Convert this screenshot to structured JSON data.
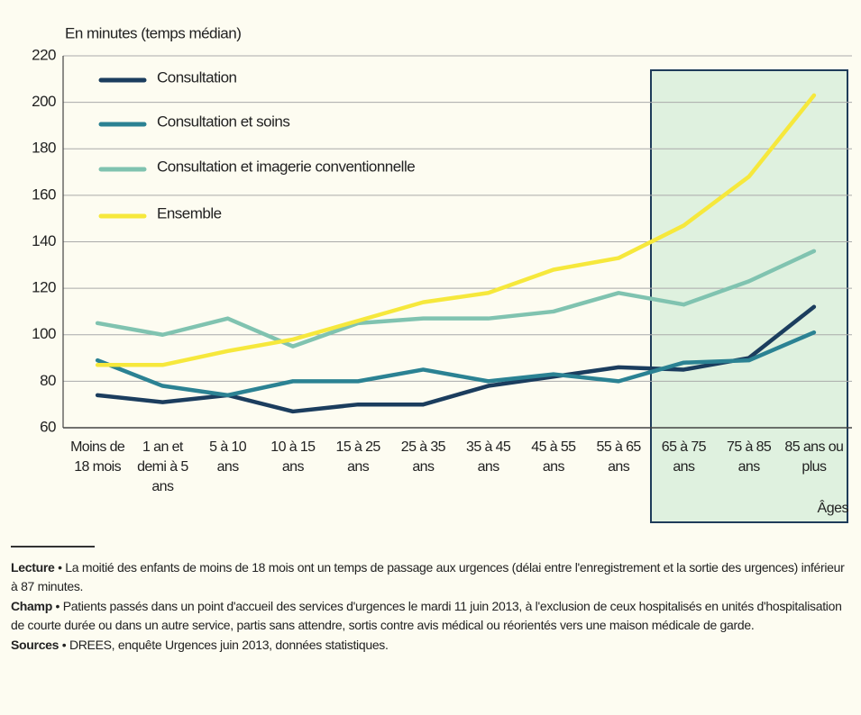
{
  "chart_data": {
    "type": "line",
    "y_axis_label": "En minutes (temps médian)",
    "x_axis_label": "Âges",
    "categories": [
      "Moins de 18 mois",
      "1 an et demi à 5 ans",
      "5 à 10 ans",
      "10 à 15 ans",
      "15 à 25 ans",
      "25 à 35 ans",
      "35 à 45 ans",
      "45 à 55 ans",
      "55 à 65 ans",
      "65 à 75 ans",
      "75 à 85 ans",
      "85 ans ou plus"
    ],
    "series": [
      {
        "name": "Consultation",
        "color": "#1b3d5e",
        "values": [
          74,
          71,
          74,
          67,
          70,
          70,
          78,
          82,
          86,
          85,
          90,
          112
        ]
      },
      {
        "name": "Consultation et soins",
        "color": "#2b8293",
        "values": [
          89,
          78,
          74,
          80,
          80,
          85,
          80,
          83,
          80,
          88,
          89,
          101
        ]
      },
      {
        "name": "Consultation et imagerie conventionnelle",
        "color": "#80c3b0",
        "values": [
          105,
          100,
          107,
          95,
          105,
          107,
          107,
          110,
          118,
          113,
          123,
          136
        ]
      },
      {
        "name": "Ensemble",
        "color": "#f6e83c",
        "values": [
          87,
          87,
          93,
          98,
          106,
          114,
          118,
          128,
          133,
          147,
          168,
          203
        ]
      }
    ],
    "ylim": [
      60,
      220
    ],
    "yticks": [
      60,
      80,
      100,
      120,
      140,
      160,
      180,
      200,
      220
    ],
    "grid": true,
    "legend": "upper left"
  },
  "notes": [
    {
      "label": "Lecture",
      "text": "• La moitié des enfants de moins de 18 mois ont un temps de passage aux urgences (délai entre l'enregistrement et la sortie des urgences) inférieur à 87 minutes."
    },
    {
      "label": "Champ",
      "text": "• Patients passés dans un point d'accueil des services d'urgences le mardi 11 juin 2013, à l'exclusion de ceux hospitalisés en unités d'hospitalisation de courte durée ou dans un autre service, partis sans attendre, sortis contre avis médical ou réorientés vers une maison médicale de garde."
    },
    {
      "label": "Sources",
      "text": "• DREES, enquête Urgences juin 2013, données statistiques."
    }
  ]
}
